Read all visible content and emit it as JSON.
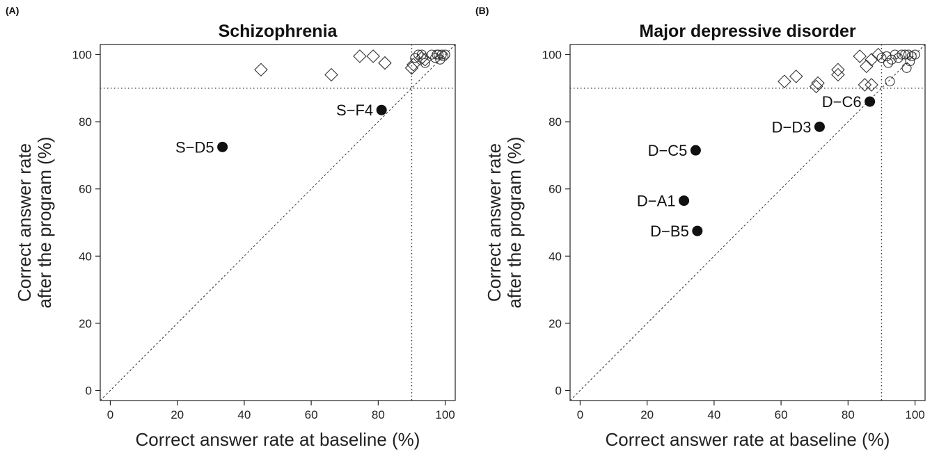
{
  "chart_data": [
    {
      "type": "scatter",
      "panel_label": "(A)",
      "title": "Schizophrenia",
      "xlabel": "Correct answer rate at baseline (%)",
      "ylabel_lines": [
        "Correct answer rate",
        "after the program (%)"
      ],
      "xlim": [
        -3,
        103
      ],
      "ylim": [
        -3,
        103
      ],
      "xticks": [
        0,
        20,
        40,
        60,
        80,
        100
      ],
      "yticks": [
        0,
        20,
        40,
        60,
        80,
        100
      ],
      "reference_lines": {
        "diagonal": true,
        "vertical_x": 90,
        "horizontal_y": 90
      },
      "grid": false,
      "series": [
        {
          "marker": "diamond",
          "points": [
            [
              45,
              95.5
            ],
            [
              66,
              94
            ],
            [
              74.5,
              99.5
            ],
            [
              78.5,
              99.5
            ],
            [
              82,
              97.5
            ],
            [
              90,
              96
            ],
            [
              90.5,
              97
            ],
            [
              93,
              99
            ],
            [
              94,
              98.5
            ]
          ]
        },
        {
          "marker": "circle",
          "points": [
            [
              91,
              99
            ],
            [
              92,
              100
            ],
            [
              93,
              100
            ],
            [
              94,
              97.5
            ],
            [
              96,
              100
            ],
            [
              97,
              99
            ],
            [
              98,
              100
            ],
            [
              99,
              100
            ],
            [
              99.5,
              99.5
            ],
            [
              100,
              100
            ],
            [
              98.5,
              98.5
            ],
            [
              97.5,
              100
            ]
          ]
        },
        {
          "marker": "filled-circle",
          "points": [
            [
              33.5,
              72.5,
              "S−D5"
            ],
            [
              81,
              83.5,
              "S−F4"
            ]
          ]
        }
      ]
    },
    {
      "type": "scatter",
      "panel_label": "(B)",
      "title": "Major depressive disorder",
      "xlabel": "Correct answer rate at baseline (%)",
      "ylabel_lines": [
        "Correct answer rate",
        "after the program (%)"
      ],
      "xlim": [
        -3,
        103
      ],
      "ylim": [
        -3,
        103
      ],
      "xticks": [
        0,
        20,
        40,
        60,
        80,
        100
      ],
      "yticks": [
        0,
        20,
        40,
        60,
        80,
        100
      ],
      "reference_lines": {
        "diagonal": true,
        "vertical_x": 90,
        "horizontal_y": 90
      },
      "grid": false,
      "series": [
        {
          "marker": "diamond",
          "points": [
            [
              61,
              92
            ],
            [
              64.5,
              93.5
            ],
            [
              70.5,
              90.5
            ],
            [
              71,
              91.5
            ],
            [
              77,
              94
            ],
            [
              77,
              95.5
            ],
            [
              83.5,
              99.5
            ],
            [
              85,
              91
            ],
            [
              85.5,
              96.5
            ],
            [
              87,
              91
            ],
            [
              87,
              98.5
            ],
            [
              89,
              100
            ]
          ]
        },
        {
          "marker": "circle",
          "points": [
            [
              90,
              99
            ],
            [
              91.5,
              99.5
            ],
            [
              92,
              97.5
            ],
            [
              92.5,
              92
            ],
            [
              93,
              98.5
            ],
            [
              94,
              100
            ],
            [
              95,
              99
            ],
            [
              96,
              100
            ],
            [
              97,
              100
            ],
            [
              97.5,
              96
            ],
            [
              98,
              100
            ],
            [
              98.5,
              98
            ],
            [
              99,
              99.5
            ],
            [
              100,
              100
            ]
          ]
        },
        {
          "marker": "filled-circle",
          "points": [
            [
              86.5,
              86,
              "D−C6"
            ],
            [
              71.5,
              78.5,
              "D−D3"
            ],
            [
              34.5,
              71.5,
              "D−C5"
            ],
            [
              31,
              56.5,
              "D−A1"
            ],
            [
              35,
              47.5,
              "D−B5"
            ]
          ]
        }
      ]
    }
  ]
}
